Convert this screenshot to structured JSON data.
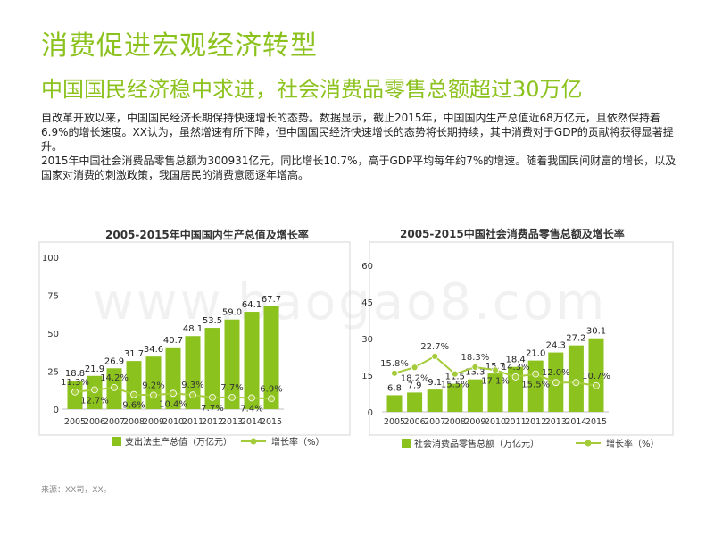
{
  "page": {
    "title": "消费促进宏观经济转型",
    "subtitle": "中国国民经济稳中求进，社会消费品零售总额超过30万亿",
    "paragraphs": [
      "自改革开放以来，中国国民经济长期保持快速增长的态势。数据显示，截止2015年，中国国内生产总值近68万亿元，且依然保持着6.9%的增长速度。XX认为，虽然增速有所下降，但中国国民经济快速增长的态势将长期持续，其中消费对于GDP的贡献将获得显著提升。",
      "2015年中国社会消费品零售总额为300931亿元，同比增长10.7%，高于GDP平均每年约7%的增速。随着我国民间财富的增长，以及国家对消费的刺激政策，我国居民的消费意愿逐年增高。"
    ],
    "source": "来源：XX司，XX。",
    "watermark": "www.baogao8.com",
    "colors": {
      "bar": "#8cc21e",
      "line": "#a4cc3a",
      "title": "#8cc21e"
    }
  },
  "chart_data": [
    {
      "type": "bar",
      "title": "2005-2015年中国国内生产总值及增长率",
      "categories": [
        "2005",
        "2006",
        "2007",
        "2008",
        "2009",
        "2010",
        "2011",
        "2012",
        "2013",
        "2014",
        "2015"
      ],
      "series": [
        {
          "name": "支出法生产总值（万亿元）",
          "type": "bar",
          "values": [
            18.8,
            21.9,
            26.9,
            31.7,
            34.6,
            40.7,
            48.1,
            53.5,
            59.0,
            64.1,
            67.7
          ],
          "labels": [
            "18.8",
            "21.9",
            "26.9",
            "31.7",
            "34.6",
            "40.7",
            "48.1",
            "53.5",
            "59.0",
            "64.1",
            "67.7"
          ]
        },
        {
          "name": "增长率（%）",
          "type": "line",
          "values": [
            11.3,
            12.7,
            14.2,
            9.6,
            9.2,
            10.4,
            9.3,
            7.7,
            7.7,
            7.4,
            6.9
          ],
          "labels": [
            "11.3%",
            "12.7%",
            "14.2%",
            "9.6%",
            "9.2%",
            "10.4%",
            "9.3%",
            "7.7%",
            "7.7%",
            "7.4%",
            "6.9%"
          ]
        }
      ],
      "yticks": [
        "0",
        "25",
        "50",
        "75",
        "100"
      ],
      "ylim": [
        0,
        100
      ],
      "grid": false,
      "legend": "bottom"
    },
    {
      "type": "bar",
      "title": "2005-2015中国社会消费品零售总额及增长率",
      "categories": [
        "2005",
        "2006",
        "2007",
        "2008",
        "2009",
        "2010",
        "2011",
        "2012",
        "2013",
        "2014",
        "2015"
      ],
      "series": [
        {
          "name": "社会消费品零售总额（万亿元）",
          "type": "bar",
          "values": [
            6.8,
            7.9,
            9.1,
            11.5,
            13.3,
            15.7,
            18.4,
            21.0,
            24.3,
            27.2,
            30.1
          ],
          "labels": [
            "6.8",
            "7.9",
            "9.1",
            "11.5",
            "13.3",
            "15.7",
            "18.4",
            "21.0",
            "24.3",
            "27.2",
            "30.1"
          ]
        },
        {
          "name": "增长率（%）",
          "type": "line",
          "values": [
            15.8,
            18.2,
            22.7,
            15.5,
            18.3,
            17.1,
            14.3,
            15.5,
            12.0,
            12.0,
            10.7
          ],
          "labels": [
            "15.8%",
            "18.2%",
            "22.7%",
            "15.5%",
            "18.3%",
            "17.1%",
            "14.3%",
            "15.5%",
            "12.0%",
            "",
            "10.7%"
          ]
        }
      ],
      "yticks": [
        "0",
        "15",
        "30",
        "45",
        "60"
      ],
      "ylim": [
        0,
        60
      ],
      "grid": false,
      "legend": "bottom"
    }
  ]
}
